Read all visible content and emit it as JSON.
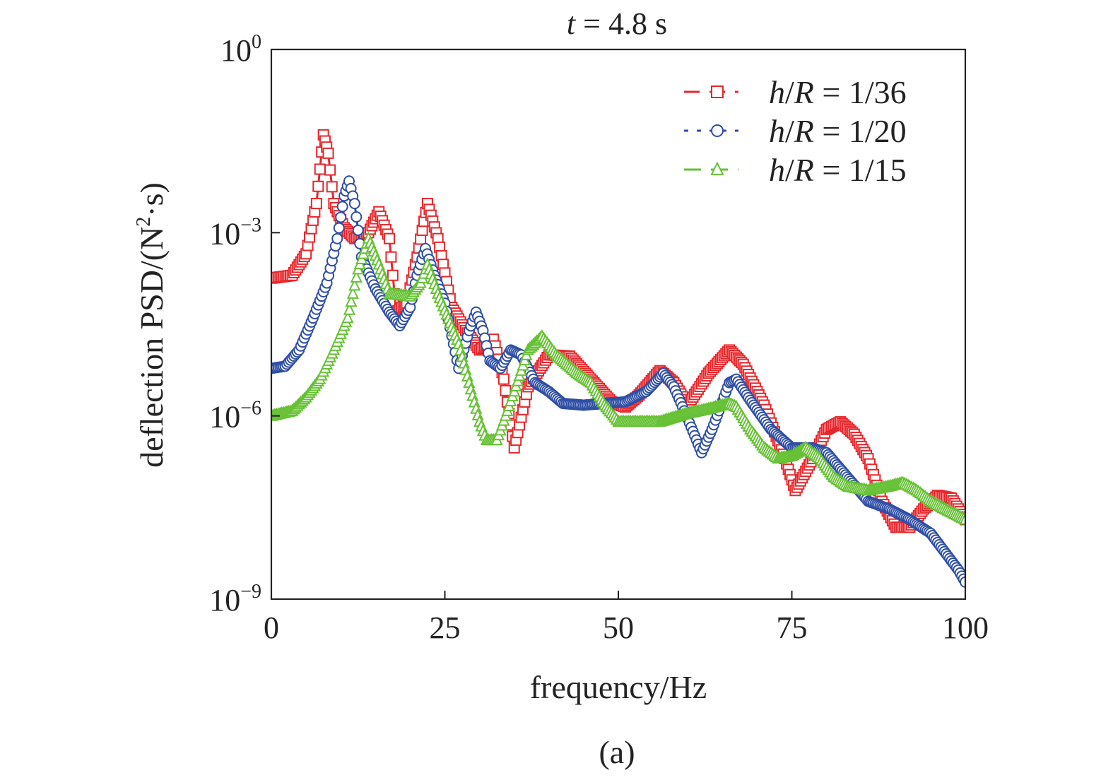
{
  "chart_data": {
    "type": "line",
    "title_parts": {
      "var": "t",
      "rest": " = 4.8 s"
    },
    "xlabel": "frequency/Hz",
    "ylabel_parts": {
      "main": "deflection PSD/(N",
      "sup": "2",
      "tail": "·s)"
    },
    "caption": "(a)",
    "xlim": [
      0,
      100
    ],
    "ylim": [
      1e-09,
      1
    ],
    "yscale": "log",
    "xticks": [
      0,
      25,
      50,
      75,
      100
    ],
    "xtick_labels": [
      "0",
      "25",
      "50",
      "75",
      "100"
    ],
    "yticks": [
      1e-09,
      1e-06,
      0.001,
      1
    ],
    "ytick_labels": [
      {
        "base": "10",
        "exp": "−9"
      },
      {
        "base": "10",
        "exp": "−6"
      },
      {
        "base": "10",
        "exp": "−3"
      },
      {
        "base": "10",
        "exp": "0"
      }
    ],
    "legend_position": "top-right",
    "grid": false,
    "series": [
      {
        "name": "h/R = 1/36",
        "label_parts": {
          "h": "h",
          "slash": "/",
          "R": "R",
          "rest": " = 1/36"
        },
        "color": "#e8262b",
        "marker": "square",
        "dash": "22 14",
        "points": [
          [
            0,
            0.00018
          ],
          [
            3,
            0.0002
          ],
          [
            5,
            0.00045
          ],
          [
            6.5,
            0.003
          ],
          [
            7.5,
            0.04
          ],
          [
            8.2,
            0.02
          ],
          [
            9,
            0.003
          ],
          [
            10.5,
            0.0012
          ],
          [
            12,
            0.0008
          ],
          [
            14,
            0.001
          ],
          [
            15.5,
            0.0022
          ],
          [
            17,
            0.0008
          ],
          [
            18,
            5e-05
          ],
          [
            19.5,
            7e-05
          ],
          [
            21,
            0.0004
          ],
          [
            22.5,
            0.003
          ],
          [
            24,
            0.0008
          ],
          [
            26,
            6e-05
          ],
          [
            28,
            2.5e-05
          ],
          [
            30,
            1.2e-05
          ],
          [
            32,
            1.8e-05
          ],
          [
            33.5,
            4e-06
          ],
          [
            35,
            3e-07
          ],
          [
            37,
            3e-06
          ],
          [
            40,
            1e-05
          ],
          [
            43,
            9.5e-06
          ],
          [
            46,
            4e-06
          ],
          [
            49,
            1.7e-06
          ],
          [
            51,
            1.4e-06
          ],
          [
            53,
            2.2e-06
          ],
          [
            56,
            5.5e-06
          ],
          [
            58,
            3.5e-06
          ],
          [
            60,
            1.5e-06
          ],
          [
            63,
            5e-06
          ],
          [
            66,
            1.2e-05
          ],
          [
            68,
            7e-06
          ],
          [
            71,
            1.5e-06
          ],
          [
            74,
            2e-07
          ],
          [
            75.5,
            6e-08
          ],
          [
            78,
            2e-07
          ],
          [
            80,
            6e-07
          ],
          [
            82,
            8e-07
          ],
          [
            84,
            5e-07
          ],
          [
            86,
            2e-07
          ],
          [
            88,
            4e-08
          ],
          [
            90,
            1.5e-08
          ],
          [
            92,
            1.5e-08
          ],
          [
            94,
            3e-08
          ],
          [
            96,
            5e-08
          ],
          [
            98,
            4.5e-08
          ],
          [
            100,
            2e-08
          ]
        ]
      },
      {
        "name": "h/R = 1/20",
        "label_parts": {
          "h": "h",
          "slash": "/",
          "R": "R",
          "rest": " = 1/20"
        },
        "color": "#2e4ea5",
        "marker": "circle",
        "dash": "6 12",
        "points": [
          [
            0,
            6e-06
          ],
          [
            2,
            6.5e-06
          ],
          [
            4,
            1.2e-05
          ],
          [
            6,
            4e-05
          ],
          [
            8,
            0.00015
          ],
          [
            9.5,
            0.0008
          ],
          [
            10.5,
            0.004
          ],
          [
            11.2,
            0.007
          ],
          [
            12,
            0.003
          ],
          [
            13,
            0.0004
          ],
          [
            15,
            0.00012
          ],
          [
            17,
            5e-05
          ],
          [
            18.5,
            3e-05
          ],
          [
            20,
            6e-05
          ],
          [
            21,
            0.0002
          ],
          [
            22.2,
            0.00055
          ],
          [
            23.5,
            0.0002
          ],
          [
            25,
            7e-05
          ],
          [
            27,
            6e-06
          ],
          [
            28.5,
            2.5e-05
          ],
          [
            29.5,
            5e-05
          ],
          [
            30.5,
            2.5e-05
          ],
          [
            31.5,
            8e-06
          ],
          [
            33,
            6e-06
          ],
          [
            34.5,
            1.2e-05
          ],
          [
            36,
            1e-05
          ],
          [
            38,
            3.5e-06
          ],
          [
            40,
            2.5e-06
          ],
          [
            42,
            1.6e-06
          ],
          [
            45,
            1.5e-06
          ],
          [
            48,
            1.6e-06
          ],
          [
            51,
            1.7e-06
          ],
          [
            54,
            2.5e-06
          ],
          [
            56.5,
            5e-06
          ],
          [
            58,
            3e-06
          ],
          [
            60,
            9e-07
          ],
          [
            62,
            2.5e-07
          ],
          [
            63.5,
            6e-07
          ],
          [
            66,
            3.5e-06
          ],
          [
            67,
            4e-06
          ],
          [
            69,
            1.8e-06
          ],
          [
            72,
            6e-07
          ],
          [
            75,
            3e-07
          ],
          [
            78,
            3e-07
          ],
          [
            80,
            2.5e-07
          ],
          [
            83,
            1e-07
          ],
          [
            86,
            4e-08
          ],
          [
            89,
            3e-08
          ],
          [
            92,
            2e-08
          ],
          [
            95,
            1.2e-08
          ],
          [
            97,
            6e-09
          ],
          [
            99,
            3e-09
          ],
          [
            100,
            1.9e-09
          ]
        ]
      },
      {
        "name": "h/R = 1/15",
        "label_parts": {
          "h": "h",
          "slash": "/",
          "R": "R",
          "rest": " = 1/15"
        },
        "color": "#66c134",
        "marker": "triangle",
        "dash": "24 14",
        "points": [
          [
            0,
            1e-06
          ],
          [
            3,
            1.2e-06
          ],
          [
            5,
            2e-06
          ],
          [
            7,
            4e-06
          ],
          [
            9,
            1.2e-05
          ],
          [
            11,
            4e-05
          ],
          [
            12.5,
            0.00025
          ],
          [
            14,
            0.0008
          ],
          [
            15.5,
            0.0003
          ],
          [
            17,
            0.0001
          ],
          [
            20,
            9e-05
          ],
          [
            21.5,
            0.00015
          ],
          [
            22.5,
            0.0003
          ],
          [
            24,
            0.0001
          ],
          [
            27,
            1.5e-05
          ],
          [
            30,
            8e-07
          ],
          [
            31,
            4e-07
          ],
          [
            32.5,
            4e-07
          ],
          [
            35,
            2.5e-06
          ],
          [
            37,
            1.2e-05
          ],
          [
            39,
            2e-05
          ],
          [
            41,
            1e-05
          ],
          [
            44,
            5e-06
          ],
          [
            46,
            3.5e-06
          ],
          [
            48,
            1.5e-06
          ],
          [
            50,
            8e-07
          ],
          [
            53,
            8e-07
          ],
          [
            56,
            8e-07
          ],
          [
            60,
            1.1e-06
          ],
          [
            63,
            1.3e-06
          ],
          [
            66,
            1.6e-06
          ],
          [
            67,
            1.4e-06
          ],
          [
            69,
            6e-07
          ],
          [
            71,
            3e-07
          ],
          [
            73,
            2e-07
          ],
          [
            75,
            2.2e-07
          ],
          [
            77,
            3e-07
          ],
          [
            79,
            2e-07
          ],
          [
            81,
            1e-07
          ],
          [
            83,
            7e-08
          ],
          [
            86,
            6e-08
          ],
          [
            89,
            7e-08
          ],
          [
            91,
            8e-08
          ],
          [
            93,
            6e-08
          ],
          [
            95,
            4e-08
          ],
          [
            97,
            3e-08
          ],
          [
            100,
            2e-08
          ]
        ]
      }
    ]
  }
}
